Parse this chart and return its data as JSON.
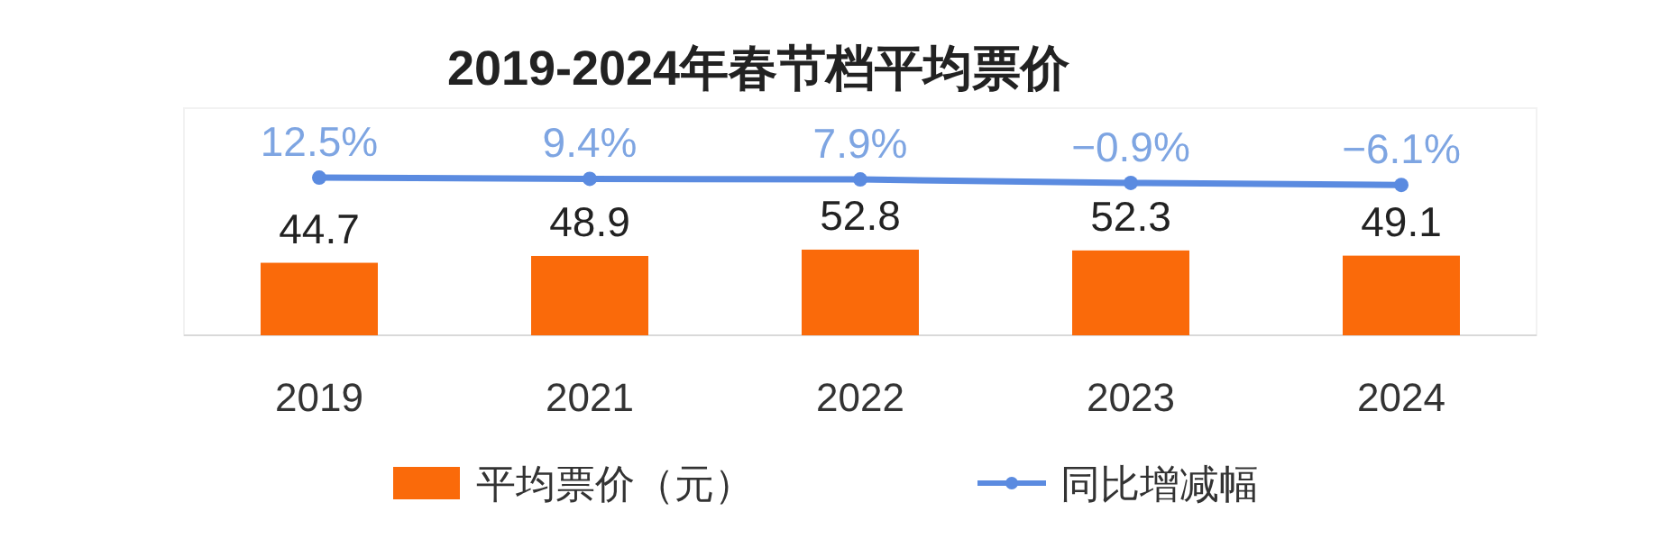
{
  "chart_data": {
    "type": "bar",
    "title": "2019-2024年春节档平均票价",
    "categories": [
      "2019",
      "2021",
      "2022",
      "2023",
      "2024"
    ],
    "ylim": [
      0,
      140
    ],
    "y2lim": [
      -390,
      190
    ],
    "legend": "bottom",
    "tick_labels": "x",
    "series": [
      {
        "name": "平均票价（元）",
        "color": "#fa6a0a",
        "values": [
          44.7,
          48.9,
          52.8,
          52.3,
          49.1
        ],
        "value_labels": [
          "44.7",
          "48.9",
          "52.8",
          "52.3",
          "49.1"
        ]
      },
      {
        "name": "同比增减幅",
        "type": "line",
        "axis": "y2",
        "color": "#5b8be0",
        "marker": "circle",
        "line_style": "solid",
        "values": [
          12.5,
          9.4,
          7.9,
          -0.9,
          -6.1
        ],
        "value_labels": [
          "12.5%",
          "9.4%",
          "7.9%",
          "−0.9%",
          "−6.1%"
        ]
      }
    ]
  }
}
